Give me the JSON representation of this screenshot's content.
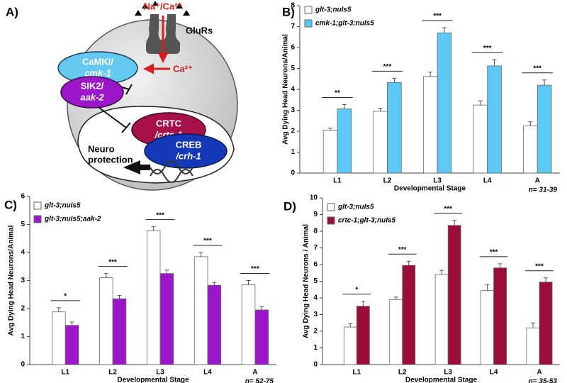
{
  "diagram": {
    "panel": "A)",
    "ion": "Na⁺/Ca²⁺",
    "receptor": "GluRs",
    "camk_name": "CaMKI/",
    "camk_gene": "cmk-1",
    "calcium": "Ca²⁺",
    "sik_name": "SIK2/",
    "sik_gene": "aak-2",
    "crtc_name": "CRTC",
    "crtc_gene": "/crtc-1",
    "creb_name": "CREB",
    "creb_gene": "/crh-1",
    "outcome_1": "Neuro",
    "outcome_2": "protection"
  },
  "chart_data": [
    {
      "type": "bar",
      "panel": "B)",
      "y_label": "Avg Dying Head Neurons/Animal",
      "x_label": "Developmental Stage",
      "note": "n= 31-39",
      "categories": [
        "L1",
        "L2",
        "L3",
        "L4",
        "A"
      ],
      "series": [
        {
          "name": "glt-3;nuIs5",
          "color": "#ffffff",
          "values": [
            2.05,
            2.95,
            4.62,
            3.25,
            2.25
          ],
          "errors": [
            0.1,
            0.15,
            0.2,
            0.2,
            0.2
          ]
        },
        {
          "name": "cmk-1;glt-3;nuIs5",
          "color": "#5bc8f5",
          "values": [
            3.07,
            4.33,
            6.7,
            5.12,
            4.2
          ],
          "errors": [
            0.2,
            0.2,
            0.25,
            0.3,
            0.25
          ]
        }
      ],
      "significance": [
        "**",
        "***",
        "***",
        "***",
        "***"
      ],
      "ylim": [
        0,
        8
      ],
      "yticks": [
        0,
        1,
        2,
        3,
        4,
        5,
        6,
        7,
        8
      ]
    },
    {
      "type": "bar",
      "panel": "C)",
      "y_label": "Avg Dying Head Neurons/Animal",
      "x_label": "Developmental Stage",
      "note": "n= 52-75",
      "categories": [
        "L1",
        "L2",
        "L3",
        "L4",
        "A"
      ],
      "series": [
        {
          "name": "glt-3;nuIs5",
          "color": "#ffffff",
          "values": [
            1.88,
            3.1,
            4.77,
            3.85,
            2.85
          ],
          "errors": [
            0.15,
            0.15,
            0.15,
            0.15,
            0.15
          ]
        },
        {
          "name": "glt-3;nuIs5;aak-2",
          "color": "#9b17c9",
          "values": [
            1.4,
            2.35,
            3.25,
            2.83,
            1.95
          ],
          "errors": [
            0.12,
            0.12,
            0.12,
            0.1,
            0.12
          ]
        }
      ],
      "significance": [
        "*",
        "***",
        "***",
        "***",
        "***"
      ],
      "ylim": [
        0,
        6
      ],
      "yticks": [
        0,
        1,
        2,
        3,
        4,
        5,
        6
      ]
    },
    {
      "type": "bar",
      "panel": "D)",
      "y_label": "Avg Dying Head Neurons / Animal",
      "x_label": "Developmental Stage",
      "note": "n= 35-53",
      "categories": [
        "L1",
        "L2",
        "L3",
        "L4",
        "A"
      ],
      "series": [
        {
          "name": "glt-3;nuIs5",
          "color": "#ffffff",
          "values": [
            2.25,
            3.9,
            5.4,
            4.45,
            2.2
          ],
          "errors": [
            0.2,
            0.15,
            0.25,
            0.35,
            0.3
          ]
        },
        {
          "name": "crtc-1;glt-3;nuIs5",
          "color": "#9b0e3a",
          "values": [
            3.5,
            5.95,
            8.35,
            5.8,
            4.95
          ],
          "errors": [
            0.3,
            0.25,
            0.3,
            0.25,
            0.25
          ]
        }
      ],
      "significance": [
        "*",
        "***",
        "***",
        "***",
        "***"
      ],
      "ylim": [
        0,
        10
      ],
      "yticks": [
        0,
        1,
        2,
        3,
        4,
        5,
        6,
        7,
        8,
        9,
        10
      ]
    }
  ]
}
